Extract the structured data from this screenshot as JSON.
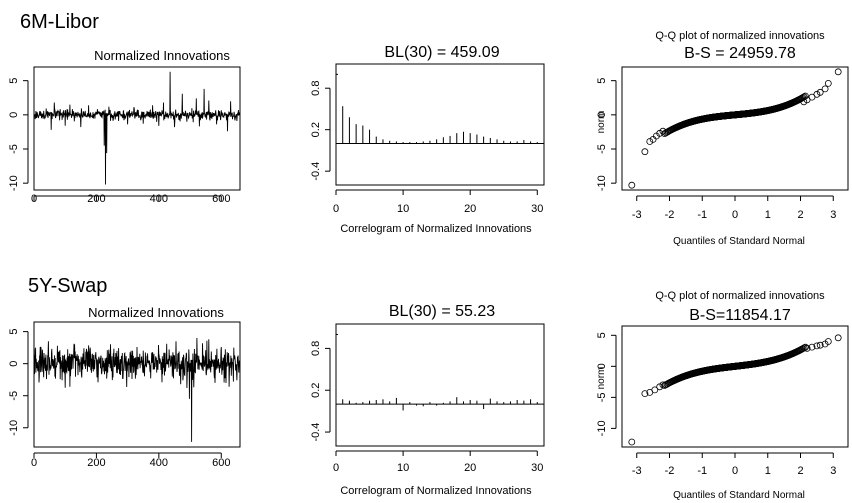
{
  "panels": [
    {
      "section_title": "6M-Libor",
      "series_plot": {
        "title": "Normalized Innovations",
        "x_ticks": [
          "0",
          "200",
          "400",
          "600"
        ],
        "y_ticks": [
          "-10",
          "-5",
          "0",
          "5"
        ]
      },
      "correlogram": {
        "title": "BL(30) = 459.09",
        "xlabel": "Correlogram of Normalized Innovations",
        "x_ticks": [
          "0",
          "10",
          "20",
          "30"
        ],
        "y_ticks": [
          "-0.4",
          "0.2",
          "0.8"
        ]
      },
      "qq_plot": {
        "title": "Q-Q plot of normalized innovations",
        "subtitle": "B-S = 24959.78",
        "xlabel": "Quantiles of Standard Normal",
        "ylabel": "norm",
        "x_ticks": [
          "-3",
          "-2",
          "-1",
          "0",
          "1",
          "2",
          "3"
        ],
        "y_ticks": [
          "-10",
          "-5",
          "0",
          "5"
        ]
      }
    },
    {
      "section_title": "5Y-Swap",
      "series_plot": {
        "title": "Normalized Innovations",
        "x_ticks": [
          "0",
          "200",
          "400",
          "600"
        ],
        "y_ticks": [
          "-10",
          "-5",
          "0",
          "5"
        ]
      },
      "correlogram": {
        "title": "BL(30) = 55.23",
        "xlabel": "Correlogram of Normalized Innovations",
        "x_ticks": [
          "0",
          "10",
          "20",
          "30"
        ],
        "y_ticks": [
          "-0.4",
          "0.2",
          "0.8"
        ]
      },
      "qq_plot": {
        "title": "Q-Q plot of normalized innovations",
        "subtitle": "B-S=11854.17",
        "xlabel": "Quantiles of Standard Normal",
        "ylabel": "norm",
        "x_ticks": [
          "-3",
          "-2",
          "-1",
          "0",
          "1",
          "2",
          "3"
        ],
        "y_ticks": [
          "-10",
          "-5",
          "0",
          "5"
        ]
      }
    }
  ],
  "chart_data": [
    {
      "type": "line",
      "title": "Normalized Innovations",
      "section": "6M-Libor",
      "xlim": [
        0,
        660
      ],
      "ylim": [
        -11,
        7
      ],
      "n": 660,
      "base_noise": 0.35,
      "spikes": [
        {
          "x": 55,
          "y": -2.2
        },
        {
          "x": 65,
          "y": 1.8
        },
        {
          "x": 100,
          "y": -1.6
        },
        {
          "x": 115,
          "y": 1.5
        },
        {
          "x": 150,
          "y": -1.8
        },
        {
          "x": 175,
          "y": 1.4
        },
        {
          "x": 225,
          "y": -4.5
        },
        {
          "x": 229,
          "y": -10.2
        },
        {
          "x": 233,
          "y": -5.6
        },
        {
          "x": 240,
          "y": 1.2
        },
        {
          "x": 300,
          "y": -1.4
        },
        {
          "x": 320,
          "y": 1.1
        },
        {
          "x": 350,
          "y": -1.3
        },
        {
          "x": 380,
          "y": 1.4
        },
        {
          "x": 400,
          "y": -1.6
        },
        {
          "x": 415,
          "y": 1.8
        },
        {
          "x": 436,
          "y": 6.3
        },
        {
          "x": 450,
          "y": -1.8
        },
        {
          "x": 475,
          "y": 3.1
        },
        {
          "x": 490,
          "y": -1.0
        },
        {
          "x": 520,
          "y": 2.4
        },
        {
          "x": 530,
          "y": -1.7
        },
        {
          "x": 545,
          "y": 3.8
        },
        {
          "x": 560,
          "y": 2.1
        },
        {
          "x": 585,
          "y": -1.4
        },
        {
          "x": 620,
          "y": -2.4
        },
        {
          "x": 630,
          "y": 2.0
        },
        {
          "x": 650,
          "y": -0.9
        }
      ]
    },
    {
      "type": "bar",
      "title": "BL(30) = 459.09",
      "section": "6M-Libor",
      "xlabel": "Correlogram of Normalized Innovations",
      "xlim": [
        0,
        31
      ],
      "ylim": [
        -0.6,
        1.15
      ],
      "lags": [
        1,
        2,
        3,
        4,
        5,
        6,
        7,
        8,
        9,
        10,
        11,
        12,
        13,
        14,
        15,
        16,
        17,
        18,
        19,
        20,
        21,
        22,
        23,
        24,
        25,
        26,
        27,
        28,
        29,
        30
      ],
      "values": [
        0.54,
        0.38,
        0.28,
        0.26,
        0.2,
        0.1,
        0.06,
        0.04,
        0.03,
        0.02,
        0.02,
        0.02,
        0.03,
        0.04,
        0.06,
        0.09,
        0.11,
        0.15,
        0.17,
        0.15,
        0.13,
        0.1,
        0.08,
        0.06,
        0.04,
        0.03,
        0.03,
        0.05,
        0.03,
        0.02
      ]
    },
    {
      "type": "scatter",
      "title": "Q-Q plot of normalized innovations",
      "subtitle": "B-S = 24959.78",
      "section": "6M-Libor",
      "xlabel": "Quantiles of Standard Normal",
      "ylabel": "norm",
      "xlim": [
        -3.45,
        3.45
      ],
      "ylim": [
        -11,
        7
      ],
      "core_n": 600,
      "core_scale": 1.0,
      "points": [
        {
          "x": -3.15,
          "y": -10.3
        },
        {
          "x": -2.75,
          "y": -5.4
        },
        {
          "x": -2.6,
          "y": -3.9
        },
        {
          "x": -2.5,
          "y": -3.6
        },
        {
          "x": -2.4,
          "y": -3.1
        },
        {
          "x": -2.3,
          "y": -2.7
        },
        {
          "x": -2.2,
          "y": -2.4
        },
        {
          "x": 2.1,
          "y": 1.9
        },
        {
          "x": 2.2,
          "y": 2.2
        },
        {
          "x": 2.35,
          "y": 2.6
        },
        {
          "x": 2.5,
          "y": 3.0
        },
        {
          "x": 2.6,
          "y": 3.3
        },
        {
          "x": 2.75,
          "y": 3.8
        },
        {
          "x": 2.85,
          "y": 4.6
        },
        {
          "x": 3.15,
          "y": 6.3
        }
      ]
    },
    {
      "type": "line",
      "title": "Normalized Innovations",
      "section": "5Y-Swap",
      "xlim": [
        0,
        660
      ],
      "ylim": [
        -13,
        6.5
      ],
      "n": 660,
      "base_noise": 1.2,
      "spikes": [
        {
          "x": 20,
          "y": 2.6
        },
        {
          "x": 40,
          "y": -2.4
        },
        {
          "x": 75,
          "y": 2.8
        },
        {
          "x": 90,
          "y": -2.6
        },
        {
          "x": 115,
          "y": -3.6
        },
        {
          "x": 130,
          "y": 3.0
        },
        {
          "x": 180,
          "y": 2.5
        },
        {
          "x": 205,
          "y": -2.9
        },
        {
          "x": 240,
          "y": 2.2
        },
        {
          "x": 285,
          "y": -2.3
        },
        {
          "x": 330,
          "y": 2.6
        },
        {
          "x": 410,
          "y": -2.9
        },
        {
          "x": 425,
          "y": 3.1
        },
        {
          "x": 455,
          "y": 3.5
        },
        {
          "x": 470,
          "y": -3.2
        },
        {
          "x": 490,
          "y": -3.8
        },
        {
          "x": 498,
          "y": -5.5
        },
        {
          "x": 505,
          "y": -12.2
        },
        {
          "x": 512,
          "y": -3.7
        },
        {
          "x": 522,
          "y": 4.0
        },
        {
          "x": 540,
          "y": 3.2
        },
        {
          "x": 560,
          "y": 3.8
        },
        {
          "x": 580,
          "y": -3.0
        },
        {
          "x": 600,
          "y": 2.6
        },
        {
          "x": 625,
          "y": -3.6
        },
        {
          "x": 640,
          "y": 2.5
        },
        {
          "x": 650,
          "y": -2.6
        }
      ]
    },
    {
      "type": "bar",
      "title": "BL(30) = 55.23",
      "section": "5Y-Swap",
      "xlabel": "Correlogram of Normalized Innovations",
      "xlim": [
        0,
        31
      ],
      "ylim": [
        -0.6,
        1.15
      ],
      "lags": [
        1,
        2,
        3,
        4,
        5,
        6,
        7,
        8,
        9,
        10,
        11,
        12,
        13,
        14,
        15,
        16,
        17,
        18,
        19,
        20,
        21,
        22,
        23,
        24,
        25,
        26,
        27,
        28,
        29,
        30
      ],
      "values": [
        0.07,
        0.05,
        0.02,
        0.03,
        0.05,
        0.06,
        0.07,
        0.04,
        0.09,
        -0.09,
        0.03,
        -0.02,
        -0.03,
        0.03,
        -0.02,
        0.02,
        0.04,
        0.1,
        0.04,
        0.06,
        0.05,
        -0.07,
        0.08,
        0.04,
        0.03,
        0.04,
        0.06,
        0.05,
        0.07,
        0.03
      ]
    },
    {
      "type": "scatter",
      "title": "Q-Q plot of normalized innovations",
      "subtitle": "B-S=11854.17",
      "section": "5Y-Swap",
      "xlabel": "Quantiles of Standard Normal",
      "ylabel": "norm",
      "xlim": [
        -3.45,
        3.45
      ],
      "ylim": [
        -13,
        6.5
      ],
      "core_n": 600,
      "core_scale": 1.35,
      "points": [
        {
          "x": -3.15,
          "y": -12.2
        },
        {
          "x": -2.75,
          "y": -4.4
        },
        {
          "x": -2.6,
          "y": -4.2
        },
        {
          "x": -2.45,
          "y": -3.8
        },
        {
          "x": -2.3,
          "y": -3.3
        },
        {
          "x": -2.2,
          "y": -3.0
        },
        {
          "x": 2.2,
          "y": 2.9
        },
        {
          "x": 2.35,
          "y": 3.1
        },
        {
          "x": 2.5,
          "y": 3.3
        },
        {
          "x": 2.6,
          "y": 3.4
        },
        {
          "x": 2.75,
          "y": 3.6
        },
        {
          "x": 2.85,
          "y": 4.0
        },
        {
          "x": 3.15,
          "y": 4.6
        }
      ]
    }
  ]
}
